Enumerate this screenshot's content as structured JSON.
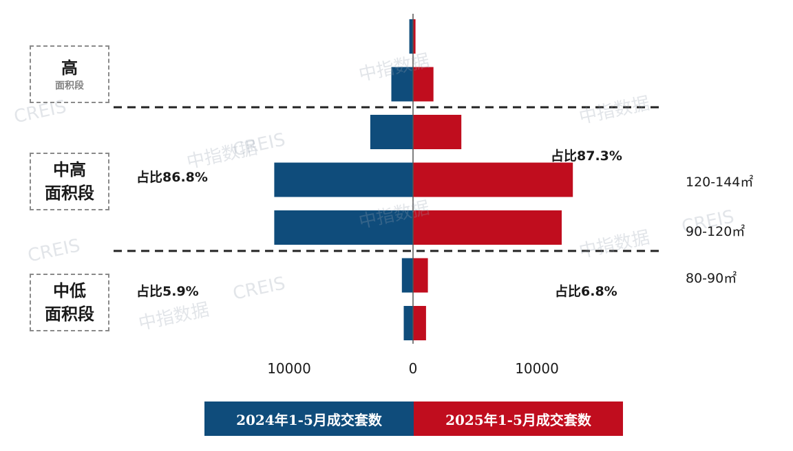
{
  "colors": {
    "series_2024": "#0f4c7b",
    "series_2025": "#c00d1e",
    "axis": "#555555",
    "divider": "#222222"
  },
  "segments": [
    {
      "line1": "高",
      "line2": "面积段"
    },
    {
      "line1": "中高",
      "line2": "面积段"
    },
    {
      "line1": "中低",
      "line2": "面积段"
    }
  ],
  "shares": {
    "left_mid_high": "占比86.8%",
    "right_mid_high": "占比87.3%",
    "left_mid_low": "占比5.9%",
    "right_mid_low": "占比6.8%"
  },
  "legend": {
    "s2024": "2024年1-5月成交套数",
    "s2025": "2025年1-5月成交套数"
  },
  "watermark": {
    "cn": "中指数据",
    "en": "CREIS"
  },
  "chart_data": {
    "type": "bar",
    "orientation": "horizontal-butterfly",
    "categories": [
      "",
      "",
      "",
      "120-144㎡",
      "90-120㎡",
      "80-90㎡",
      ""
    ],
    "series": [
      {
        "name": "2024年1-5月成交套数",
        "values": [
          300,
          1750,
          3450,
          11200,
          11200,
          900,
          750
        ]
      },
      {
        "name": "2025年1-5月成交套数",
        "values": [
          200,
          1650,
          3900,
          12900,
          12000,
          1200,
          1050
        ]
      }
    ],
    "xticks": [
      "10000",
      "0",
      "10000"
    ],
    "xlim": [
      -13500,
      13500
    ]
  }
}
